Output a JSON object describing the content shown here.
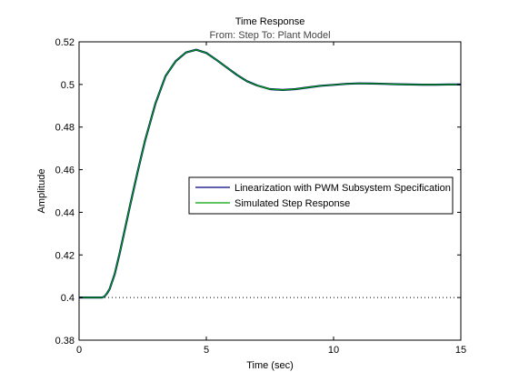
{
  "chart_data": {
    "type": "line",
    "title": "Time Response",
    "subtitle": "From: Step  To: Plant Model",
    "xlabel": "Time (sec)",
    "ylabel": "Amplitude",
    "xlim": [
      0,
      15
    ],
    "ylim": [
      0.38,
      0.52
    ],
    "xticks": [
      0,
      5,
      10,
      15
    ],
    "xtick_labels": [
      "0",
      "5",
      "10",
      "15"
    ],
    "yticks": [
      0.38,
      0.4,
      0.42,
      0.44,
      0.46,
      0.48,
      0.5,
      0.52
    ],
    "ytick_labels": [
      "0.38",
      "0.4",
      "0.42",
      "0.44",
      "0.46",
      "0.48",
      "0.5",
      "0.52"
    ],
    "grid": false,
    "legend_position": "center-right",
    "series": [
      {
        "name": "Linearization with PWM Subsystem Specification",
        "color": "#000080",
        "x": [
          0,
          0.5,
          0.9,
          1.0,
          1.1,
          1.2,
          1.4,
          1.6,
          1.8,
          2.0,
          2.3,
          2.6,
          3.0,
          3.4,
          3.8,
          4.2,
          4.6,
          5.0,
          5.4,
          5.8,
          6.2,
          6.6,
          7.0,
          7.5,
          8.0,
          8.5,
          9.0,
          9.5,
          10.0,
          10.5,
          11.0,
          11.5,
          12.0,
          12.5,
          13.0,
          13.5,
          14.0,
          14.5,
          15.0
        ],
        "values": [
          0.4,
          0.4,
          0.4,
          0.4005,
          0.402,
          0.404,
          0.411,
          0.421,
          0.432,
          0.443,
          0.459,
          0.474,
          0.491,
          0.504,
          0.511,
          0.515,
          0.5163,
          0.5148,
          0.5115,
          0.508,
          0.5045,
          0.5015,
          0.4995,
          0.4978,
          0.4974,
          0.4978,
          0.4986,
          0.4994,
          0.4998,
          0.5003,
          0.5005,
          0.5004,
          0.5003,
          0.5001,
          0.5,
          0.4999,
          0.4999,
          0.5,
          0.5
        ]
      },
      {
        "name": "Simulated Step Response",
        "color": "#00a000",
        "x": [
          0,
          0.5,
          0.9,
          1.0,
          1.1,
          1.2,
          1.4,
          1.6,
          1.8,
          2.0,
          2.3,
          2.6,
          3.0,
          3.4,
          3.8,
          4.2,
          4.6,
          5.0,
          5.4,
          5.8,
          6.2,
          6.6,
          7.0,
          7.5,
          8.0,
          8.5,
          9.0,
          9.5,
          10.0,
          10.5,
          11.0,
          11.5,
          12.0,
          12.5,
          13.0,
          13.5,
          14.0,
          14.5,
          15.0
        ],
        "values": [
          0.4,
          0.4,
          0.4,
          0.4005,
          0.402,
          0.404,
          0.411,
          0.421,
          0.432,
          0.443,
          0.459,
          0.474,
          0.491,
          0.504,
          0.511,
          0.515,
          0.5163,
          0.5148,
          0.5115,
          0.508,
          0.5045,
          0.5015,
          0.4995,
          0.4978,
          0.4974,
          0.4978,
          0.4986,
          0.4994,
          0.4998,
          0.5003,
          0.5005,
          0.5004,
          0.5003,
          0.5001,
          0.5,
          0.4999,
          0.4999,
          0.5,
          0.5
        ]
      }
    ],
    "reference_line": {
      "y": 0.4,
      "style": "dotted",
      "color": "#000000"
    }
  }
}
